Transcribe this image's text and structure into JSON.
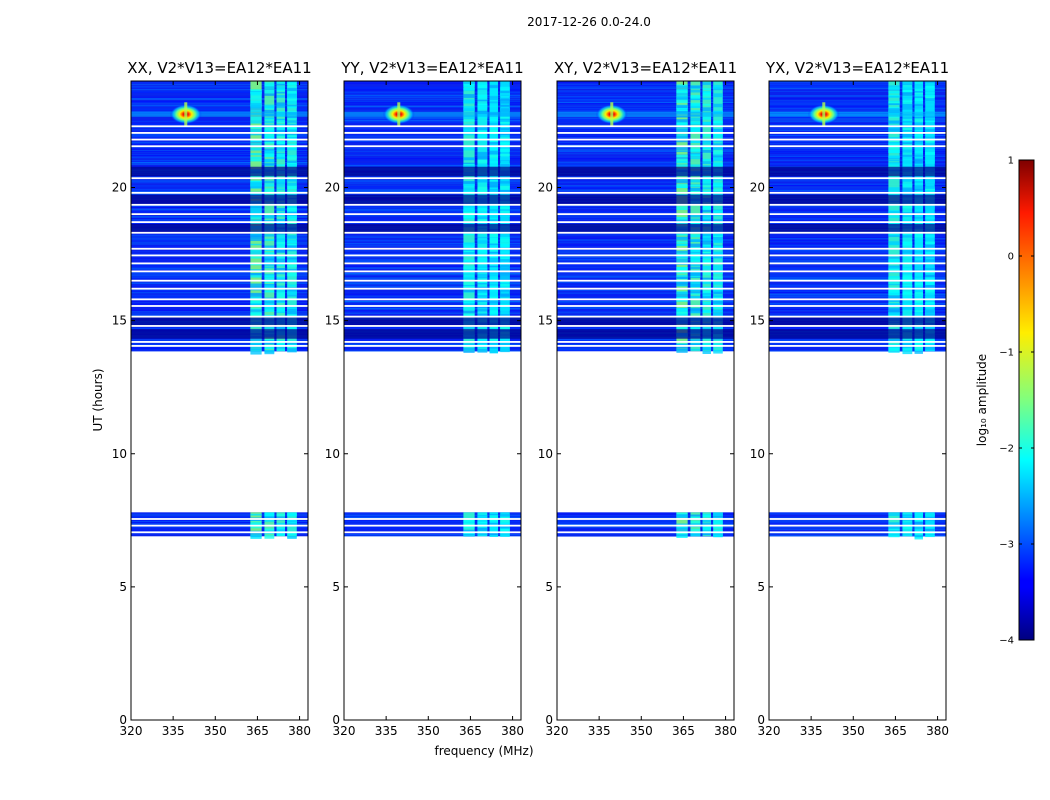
{
  "figure": {
    "suptitle": "2017-12-26 0.0-24.0",
    "shared_xlabel": "frequency (MHz)",
    "shared_ylabel": "UT (hours)"
  },
  "chart_data": {
    "type": "heatmap",
    "title": "2017-12-26 0.0-24.0",
    "xlabel": "frequency (MHz)",
    "ylabel": "UT (hours)",
    "xlim": [
      320,
      383
    ],
    "ylim": [
      0,
      24
    ],
    "xticks": [
      320,
      335,
      350,
      365,
      380
    ],
    "yticks": [
      0,
      5,
      10,
      15,
      20
    ],
    "panels": [
      {
        "title": "XX, V2*V13=EA12*EA11",
        "bright_band_scale": 1.0
      },
      {
        "title": "YY, V2*V13=EA12*EA11",
        "bright_band_scale": 0.85
      },
      {
        "title": "XY, V2*V13=EA12*EA11",
        "bright_band_scale": 1.0
      },
      {
        "title": "YX, V2*V13=EA12*EA11",
        "bright_band_scale": 0.85
      }
    ],
    "data_blocks_hours": [
      [
        6.9,
        7.8
      ],
      [
        13.85,
        24.0
      ]
    ],
    "flagged_gaps_hours": [
      7.05,
      7.3,
      7.55,
      14.05,
      14.2,
      14.8,
      15.15,
      15.55,
      15.8,
      16.2,
      16.5,
      16.85,
      17.15,
      17.45,
      17.7,
      18.3,
      18.7,
      19.0,
      19.35,
      19.8,
      20.35,
      21.55,
      21.8,
      22.05,
      22.3
    ],
    "dark_rows_hours": [
      14.5,
      14.95,
      18.45,
      19.55,
      20.6
    ],
    "rfi_bands_mhz": [
      [
        362.5,
        366.5
      ],
      [
        367.5,
        371.0
      ],
      [
        371.8,
        374.8
      ],
      [
        375.6,
        379.0
      ]
    ],
    "point_source": {
      "freq_mhz": 339.5,
      "ut_hours": 22.75
    },
    "colorbar": {
      "label": "log₁₀ amplitude",
      "min": -4,
      "max": 1,
      "ticks": [
        -4,
        -3,
        -2,
        -1,
        0,
        1
      ],
      "tick_labels": [
        "−4",
        "−3",
        "−2",
        "−1",
        "0",
        "1"
      ],
      "colormap": "jet"
    }
  }
}
